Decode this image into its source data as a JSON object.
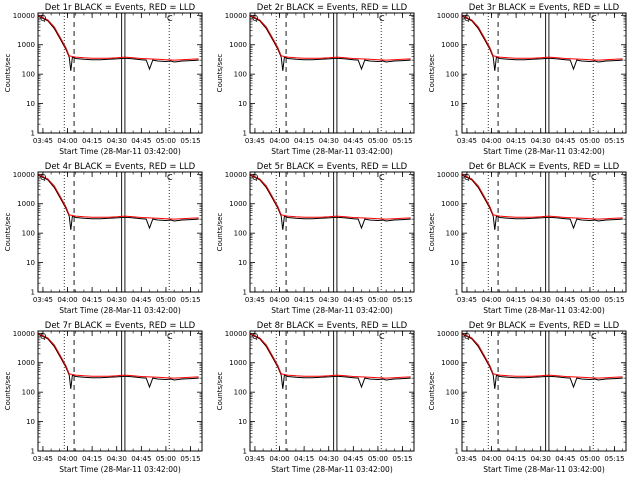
{
  "chart_data": [
    {
      "type": "line",
      "title": "Det 1r BLACK = Events, RED = LLD",
      "xlabel": "Start Time (28-Mar-11 03:42:00)",
      "ylabel": "Counts/sec"
    },
    {
      "type": "line",
      "title": "Det 2r BLACK = Events, RED = LLD",
      "xlabel": "Start Time (28-Mar-11 03:42:00)",
      "ylabel": "Counts/sec"
    },
    {
      "type": "line",
      "title": "Det 3r BLACK = Events, RED = LLD",
      "xlabel": "Start Time (28-Mar-11 03:42:00)",
      "ylabel": "Counts/sec"
    },
    {
      "type": "line",
      "title": "Det 4r BLACK = Events, RED = LLD",
      "xlabel": "Start Time (28-Mar-11 03:42:00)",
      "ylabel": "Counts/sec"
    },
    {
      "type": "line",
      "title": "Det 5r BLACK = Events, RED = LLD",
      "xlabel": "Start Time (28-Mar-11 03:42:00)",
      "ylabel": "Counts/sec"
    },
    {
      "type": "line",
      "title": "Det 6r BLACK = Events, RED = LLD",
      "xlabel": "Start Time (28-Mar-11 03:42:00)",
      "ylabel": "Counts/sec"
    },
    {
      "type": "line",
      "title": "Det 7r BLACK = Events, RED = LLD",
      "xlabel": "Start Time (28-Mar-11 03:42:00)",
      "ylabel": "Counts/sec"
    },
    {
      "type": "line",
      "title": "Det 8r BLACK = Events, RED = LLD",
      "xlabel": "Start Time (28-Mar-11 03:42:00)",
      "ylabel": "Counts/sec"
    },
    {
      "type": "line",
      "title": "Det 9r BLACK = Events, RED = LLD",
      "xlabel": "Start Time (28-Mar-11 03:42:00)",
      "ylabel": "Counts/sec"
    }
  ],
  "shared": {
    "x_ticks": [
      "03:45",
      "04:00",
      "04:15",
      "04:30",
      "04:45",
      "05:00",
      "05:15"
    ],
    "y_ticks": [
      "1",
      "10",
      "100",
      "1000",
      "10000"
    ],
    "y_scale": "log",
    "ylim": [
      1,
      12000
    ],
    "xlim": [
      "03:42",
      "05:22"
    ],
    "corner_mark_left": "Q",
    "corner_mark_right": "C",
    "colors": {
      "events": "#000000",
      "lld": "#ff0000",
      "axis": "#000000"
    },
    "markers": {
      "dotted": [
        "03:58",
        "05:02"
      ],
      "dashed": [
        "04:04"
      ],
      "solid_pairs": [
        [
          "04:33",
          "04:35"
        ]
      ]
    },
    "events_series": {
      "x": [
        "03:42",
        "03:48",
        "03:52",
        "03:56",
        "03:59",
        "04:01",
        "04:02",
        "04:03",
        "04:05",
        "04:10",
        "04:15",
        "04:20",
        "04:25",
        "04:30",
        "04:35",
        "04:40",
        "04:45",
        "04:48",
        "04:50",
        "04:52",
        "04:55",
        "05:00",
        "05:03",
        "05:05",
        "05:10",
        "05:15",
        "05:20"
      ],
      "y": [
        9500,
        6500,
        3500,
        1400,
        700,
        380,
        130,
        380,
        340,
        320,
        310,
        310,
        320,
        330,
        350,
        330,
        310,
        300,
        150,
        300,
        280,
        270,
        280,
        260,
        280,
        290,
        300
      ]
    },
    "lld_series": {
      "x": [
        "03:42",
        "03:48",
        "03:52",
        "03:56",
        "03:59",
        "04:01",
        "04:03",
        "04:05",
        "04:10",
        "04:15",
        "04:20",
        "04:25",
        "04:30",
        "04:35",
        "04:40",
        "04:45",
        "04:50",
        "04:55",
        "05:00",
        "05:05",
        "05:10",
        "05:15",
        "05:20"
      ],
      "y": [
        9800,
        7000,
        4000,
        1600,
        800,
        420,
        400,
        380,
        360,
        350,
        345,
        350,
        360,
        380,
        360,
        340,
        330,
        320,
        310,
        300,
        310,
        320,
        330
      ]
    }
  }
}
